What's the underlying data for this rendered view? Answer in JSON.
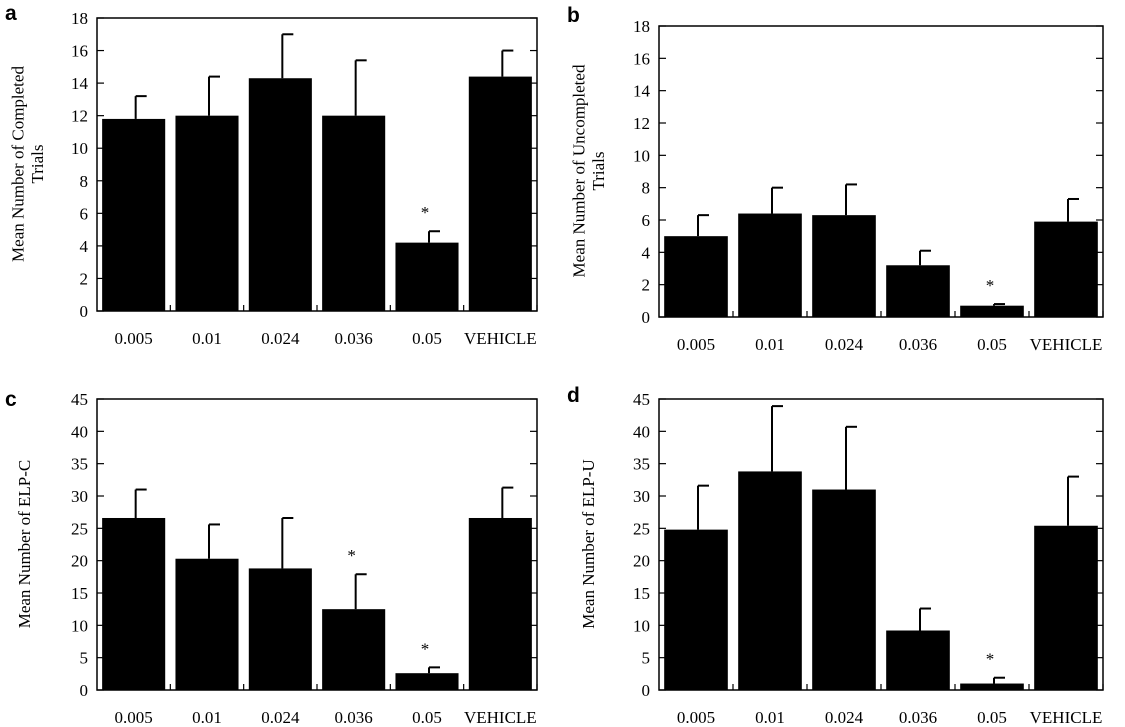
{
  "chart_data": [
    {
      "panel": "a",
      "type": "bar",
      "categories": [
        "0.005",
        "0.01",
        "0.024",
        "0.036",
        "0.05",
        "VEHICLE"
      ],
      "values": [
        11.8,
        12.0,
        14.3,
        12.0,
        4.2,
        14.4
      ],
      "errors": [
        1.4,
        2.4,
        2.7,
        3.4,
        0.7,
        1.6
      ],
      "significant": [
        false,
        false,
        false,
        false,
        true,
        false
      ],
      "significance_marker": "*",
      "ylabel": [
        "Mean Number of Completed",
        "Trials"
      ],
      "ylim": [
        0,
        18
      ],
      "yticks": [
        "0",
        "2",
        "4",
        "6",
        "8",
        "10",
        "12",
        "14",
        "16",
        "18"
      ],
      "bar_color": "#000000"
    },
    {
      "panel": "b",
      "type": "bar",
      "categories": [
        "0.005",
        "0.01",
        "0.024",
        "0.036",
        "0.05",
        "VEHICLE"
      ],
      "values": [
        5.0,
        6.4,
        6.3,
        3.2,
        0.7,
        5.9
      ],
      "errors": [
        1.3,
        1.6,
        1.9,
        0.9,
        0.1,
        1.4
      ],
      "significant": [
        false,
        false,
        false,
        false,
        true,
        false
      ],
      "significance_marker": "*",
      "ylabel": [
        "Mean Number of Uncompleted",
        "Trials"
      ],
      "ylim": [
        0,
        18
      ],
      "yticks": [
        "0",
        "2",
        "4",
        "6",
        "8",
        "10",
        "12",
        "14",
        "16",
        "18"
      ],
      "bar_color": "#000000"
    },
    {
      "panel": "c",
      "type": "bar",
      "categories": [
        "0.005",
        "0.01",
        "0.024",
        "0.036",
        "0.05",
        "VEHICLE"
      ],
      "values": [
        26.6,
        20.3,
        18.8,
        12.5,
        2.6,
        26.6
      ],
      "errors": [
        4.4,
        5.3,
        7.8,
        5.4,
        0.9,
        4.7
      ],
      "significant": [
        false,
        false,
        false,
        true,
        true,
        false
      ],
      "significance_marker": "*",
      "ylabel": [
        "Mean Number of ELP-C"
      ],
      "ylim": [
        0,
        45
      ],
      "yticks": [
        "0",
        "5",
        "10",
        "15",
        "20",
        "25",
        "30",
        "35",
        "40",
        "45"
      ],
      "bar_color": "#000000"
    },
    {
      "panel": "d",
      "type": "bar",
      "categories": [
        "0.005",
        "0.01",
        "0.024",
        "0.036",
        "0.05",
        "VEHICLE"
      ],
      "values": [
        24.8,
        33.8,
        31.0,
        9.2,
        1.0,
        25.4
      ],
      "errors": [
        6.8,
        10.1,
        9.7,
        3.4,
        0.9,
        7.6
      ],
      "significant": [
        false,
        false,
        false,
        false,
        true,
        false
      ],
      "significance_marker": "*",
      "ylabel": [
        "Mean Number of ELP-U"
      ],
      "ylim": [
        0,
        45
      ],
      "yticks": [
        "0",
        "5",
        "10",
        "15",
        "20",
        "25",
        "30",
        "35",
        "40",
        "45"
      ],
      "bar_color": "#000000"
    }
  ]
}
